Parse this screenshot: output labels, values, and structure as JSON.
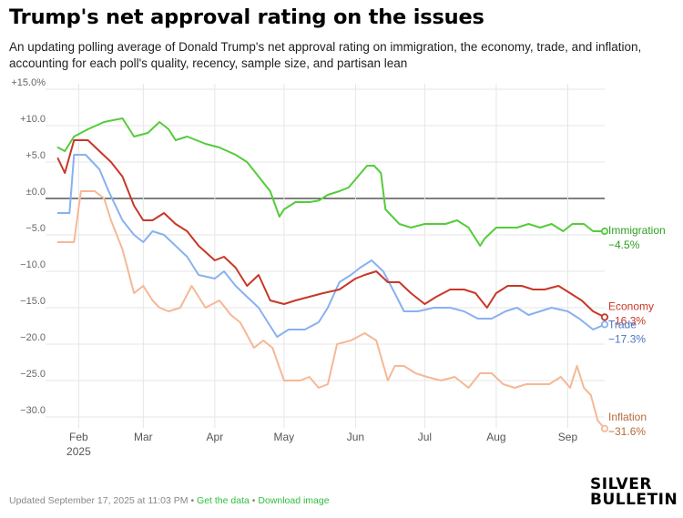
{
  "title": "Trump's net approval rating on the issues",
  "subtitle": "An updating polling average of Donald Trump's net approval rating on immigration, the economy, trade, and inflation, accounting for each poll's quality, recency, sample size, and partisan lean",
  "footer": {
    "updated": "Updated September 17, 2025 at 11:03 PM • ",
    "get_data": "Get the data",
    "separator": " • ",
    "download": "Download image"
  },
  "logo": {
    "line1": "SILVER",
    "line2": "BULLETIN"
  },
  "chart_data": {
    "type": "line",
    "ylim": [
      -31.5,
      15
    ],
    "y_ticks": [
      15,
      10,
      5,
      0,
      -5,
      -10,
      -15,
      -20,
      -25,
      -30
    ],
    "y_tick_labels": [
      "+15.0%",
      "+10.0",
      "+5.0",
      "±0.0",
      "−5.0",
      "−10.0",
      "−15.0",
      "−20.0",
      "−25.0",
      "−30.0"
    ],
    "xlim": [
      "2025-01-20",
      "2025-09-17"
    ],
    "x_ticks": [
      {
        "date": "2025-02-01",
        "label": "Feb",
        "sublabel": "2025"
      },
      {
        "date": "2025-03-01",
        "label": "Mar"
      },
      {
        "date": "2025-04-01",
        "label": "Apr"
      },
      {
        "date": "2025-05-01",
        "label": "May"
      },
      {
        "date": "2025-06-01",
        "label": "Jun"
      },
      {
        "date": "2025-07-01",
        "label": "Jul"
      },
      {
        "date": "2025-08-01",
        "label": "Aug"
      },
      {
        "date": "2025-09-01",
        "label": "Sep"
      }
    ],
    "grid": true,
    "series": [
      {
        "name": "Immigration",
        "end_label": "−4.5%",
        "color": "#54cc3b",
        "label_color": "#2f9e22",
        "x": [
          "2025-01-23",
          "2025-01-26",
          "2025-01-30",
          "2025-02-05",
          "2025-02-12",
          "2025-02-20",
          "2025-02-25",
          "2025-03-03",
          "2025-03-08",
          "2025-03-12",
          "2025-03-15",
          "2025-03-20",
          "2025-03-28",
          "2025-04-03",
          "2025-04-10",
          "2025-04-15",
          "2025-04-20",
          "2025-04-25",
          "2025-04-29",
          "2025-05-01",
          "2025-05-06",
          "2025-05-12",
          "2025-05-16",
          "2025-05-20",
          "2025-05-25",
          "2025-05-29",
          "2025-06-02",
          "2025-06-06",
          "2025-06-09",
          "2025-06-12",
          "2025-06-14",
          "2025-06-20",
          "2025-06-25",
          "2025-07-01",
          "2025-07-05",
          "2025-07-10",
          "2025-07-15",
          "2025-07-20",
          "2025-07-25",
          "2025-07-27",
          "2025-08-01",
          "2025-08-05",
          "2025-08-10",
          "2025-08-15",
          "2025-08-20",
          "2025-08-25",
          "2025-08-30",
          "2025-09-03",
          "2025-09-08",
          "2025-09-12",
          "2025-09-17"
        ],
        "y": [
          7.0,
          6.5,
          8.5,
          9.5,
          10.5,
          11.0,
          8.5,
          9.0,
          10.5,
          9.5,
          8.0,
          8.5,
          7.5,
          7.0,
          6.0,
          5.0,
          3.0,
          1.0,
          -2.5,
          -1.5,
          -0.5,
          -0.5,
          -0.3,
          0.5,
          1.0,
          1.5,
          3.0,
          4.5,
          4.5,
          3.5,
          -1.5,
          -3.5,
          -4.0,
          -3.5,
          -3.5,
          -3.5,
          -3.0,
          -4.0,
          -6.5,
          -5.5,
          -4.0,
          -4.0,
          -4.0,
          -3.5,
          -4.0,
          -3.5,
          -4.5,
          -3.5,
          -3.5,
          -4.5,
          -4.5
        ]
      },
      {
        "name": "Economy",
        "end_label": "−16.3%",
        "color": "#c83728",
        "label_color": "#c83728",
        "x": [
          "2025-01-23",
          "2025-01-26",
          "2025-01-30",
          "2025-02-05",
          "2025-02-10",
          "2025-02-15",
          "2025-02-20",
          "2025-02-25",
          "2025-03-01",
          "2025-03-05",
          "2025-03-10",
          "2025-03-15",
          "2025-03-20",
          "2025-03-25",
          "2025-04-01",
          "2025-04-05",
          "2025-04-10",
          "2025-04-15",
          "2025-04-20",
          "2025-04-25",
          "2025-05-01",
          "2025-05-06",
          "2025-05-12",
          "2025-05-18",
          "2025-05-25",
          "2025-06-01",
          "2025-06-05",
          "2025-06-10",
          "2025-06-15",
          "2025-06-20",
          "2025-06-25",
          "2025-07-01",
          "2025-07-06",
          "2025-07-12",
          "2025-07-18",
          "2025-07-23",
          "2025-07-28",
          "2025-08-01",
          "2025-08-06",
          "2025-08-12",
          "2025-08-17",
          "2025-08-22",
          "2025-08-28",
          "2025-09-02",
          "2025-09-07",
          "2025-09-12",
          "2025-09-17"
        ],
        "y": [
          5.5,
          3.5,
          8.0,
          8.0,
          6.5,
          5.0,
          3.0,
          -1.0,
          -3.0,
          -3.0,
          -2.0,
          -3.5,
          -4.5,
          -6.5,
          -8.5,
          -8.0,
          -9.5,
          -12.0,
          -10.5,
          -14.0,
          -14.5,
          -14.0,
          -13.5,
          -13.0,
          -12.5,
          -11.0,
          -10.5,
          -10.0,
          -11.5,
          -11.5,
          -13.0,
          -14.5,
          -13.5,
          -12.5,
          -12.5,
          -13.0,
          -15.0,
          -13.0,
          -12.0,
          -12.0,
          -12.5,
          -12.5,
          -12.0,
          -13.0,
          -14.0,
          -15.5,
          -16.3
        ]
      },
      {
        "name": "Trade",
        "end_label": "−17.3%",
        "color": "#88b1f0",
        "label_color": "#4a76c9",
        "x": [
          "2025-01-23",
          "2025-01-28",
          "2025-01-30",
          "2025-02-04",
          "2025-02-10",
          "2025-02-14",
          "2025-02-20",
          "2025-02-25",
          "2025-03-01",
          "2025-03-05",
          "2025-03-10",
          "2025-03-15",
          "2025-03-20",
          "2025-03-25",
          "2025-04-01",
          "2025-04-05",
          "2025-04-10",
          "2025-04-15",
          "2025-04-20",
          "2025-04-24",
          "2025-04-28",
          "2025-05-03",
          "2025-05-10",
          "2025-05-16",
          "2025-05-20",
          "2025-05-25",
          "2025-05-30",
          "2025-06-03",
          "2025-06-08",
          "2025-06-13",
          "2025-06-18",
          "2025-06-22",
          "2025-06-28",
          "2025-07-05",
          "2025-07-12",
          "2025-07-18",
          "2025-07-24",
          "2025-07-30",
          "2025-08-05",
          "2025-08-10",
          "2025-08-15",
          "2025-08-20",
          "2025-08-25",
          "2025-09-01",
          "2025-09-06",
          "2025-09-12",
          "2025-09-17"
        ],
        "y": [
          -2.0,
          -2.0,
          6.0,
          6.0,
          4.0,
          1.0,
          -3.0,
          -5.0,
          -6.0,
          -4.5,
          -5.0,
          -6.5,
          -8.0,
          -10.5,
          -11.0,
          -10.0,
          -12.0,
          -13.5,
          -15.0,
          -17.0,
          -19.0,
          -18.0,
          -18.0,
          -17.0,
          -15.0,
          -11.5,
          -10.5,
          -9.5,
          -8.5,
          -10.0,
          -13.0,
          -15.5,
          -15.5,
          -15.0,
          -15.0,
          -15.5,
          -16.5,
          -16.5,
          -15.5,
          -15.0,
          -16.0,
          -15.5,
          -15.0,
          -15.5,
          -16.5,
          -18.0,
          -17.3
        ]
      },
      {
        "name": "Inflation",
        "end_label": "−31.6%",
        "color": "#f5b896",
        "label_color": "#b56a3c",
        "x": [
          "2025-01-23",
          "2025-01-30",
          "2025-02-02",
          "2025-02-08",
          "2025-02-12",
          "2025-02-15",
          "2025-02-20",
          "2025-02-25",
          "2025-03-01",
          "2025-03-05",
          "2025-03-08",
          "2025-03-12",
          "2025-03-17",
          "2025-03-22",
          "2025-03-28",
          "2025-04-03",
          "2025-04-08",
          "2025-04-12",
          "2025-04-18",
          "2025-04-22",
          "2025-04-26",
          "2025-05-01",
          "2025-05-08",
          "2025-05-12",
          "2025-05-16",
          "2025-05-20",
          "2025-05-24",
          "2025-05-30",
          "2025-06-05",
          "2025-06-10",
          "2025-06-15",
          "2025-06-18",
          "2025-06-22",
          "2025-06-27",
          "2025-07-02",
          "2025-07-08",
          "2025-07-14",
          "2025-07-20",
          "2025-07-25",
          "2025-07-30",
          "2025-08-04",
          "2025-08-09",
          "2025-08-14",
          "2025-08-19",
          "2025-08-24",
          "2025-08-29",
          "2025-09-02",
          "2025-09-05",
          "2025-09-08",
          "2025-09-11",
          "2025-09-14",
          "2025-09-17"
        ],
        "y": [
          -6.0,
          -6.0,
          1.0,
          1.0,
          0.0,
          -3.0,
          -7.0,
          -13.0,
          -12.0,
          -14.0,
          -15.0,
          -15.5,
          -15.0,
          -12.0,
          -15.0,
          -14.0,
          -16.0,
          -17.0,
          -20.5,
          -19.5,
          -20.5,
          -25.0,
          -25.0,
          -24.5,
          -26.0,
          -25.5,
          -20.0,
          -19.5,
          -18.5,
          -19.5,
          -25.0,
          -23.0,
          -23.0,
          -24.0,
          -24.5,
          -25.0,
          -24.5,
          -26.0,
          -24.0,
          -24.0,
          -25.5,
          -26.0,
          -25.5,
          -25.5,
          -25.5,
          -24.5,
          -26.0,
          -23.0,
          -26.0,
          -27.0,
          -30.5,
          -31.6
        ]
      }
    ]
  }
}
